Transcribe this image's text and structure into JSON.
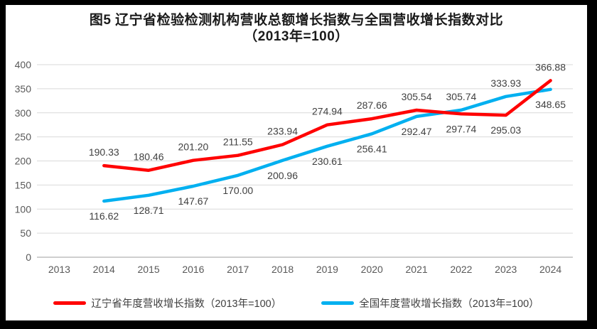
{
  "title": {
    "line1": "图5  辽宁省检验检测机构营收总额增长指数与全国营收增长指数对比",
    "line2": "（2013年=100）"
  },
  "chart_data": {
    "type": "line",
    "categories": [
      "2013",
      "2014",
      "2015",
      "2016",
      "2017",
      "2018",
      "2019",
      "2020",
      "2021",
      "2022",
      "2023",
      "2024"
    ],
    "series": [
      {
        "name": "辽宁省年度营收增长指数（2013年=100）",
        "color": "#FF0000",
        "values": [
          null,
          190.33,
          180.46,
          201.2,
          211.55,
          233.94,
          274.94,
          287.66,
          305.54,
          297.74,
          295.03,
          366.88
        ]
      },
      {
        "name": "全国年度营收增长指数（2013年=100）",
        "color": "#00B0F0",
        "values": [
          null,
          116.62,
          128.71,
          147.67,
          170.0,
          200.96,
          230.61,
          256.41,
          292.47,
          305.74,
          333.93,
          348.65
        ]
      }
    ],
    "y_ticks": [
      0,
      50,
      100,
      150,
      200,
      250,
      300,
      350,
      400
    ],
    "ylim": [
      0,
      400
    ],
    "xlabel": "",
    "ylabel": "",
    "grid": true,
    "data_labels": true,
    "label_decimals": 2,
    "legend_position": "bottom"
  },
  "colors": {
    "grid": "#D9D9D9",
    "axis_line": "#BFBFBF",
    "tick_text": "#595959",
    "label_text": "#404040",
    "frame": "#000000"
  }
}
